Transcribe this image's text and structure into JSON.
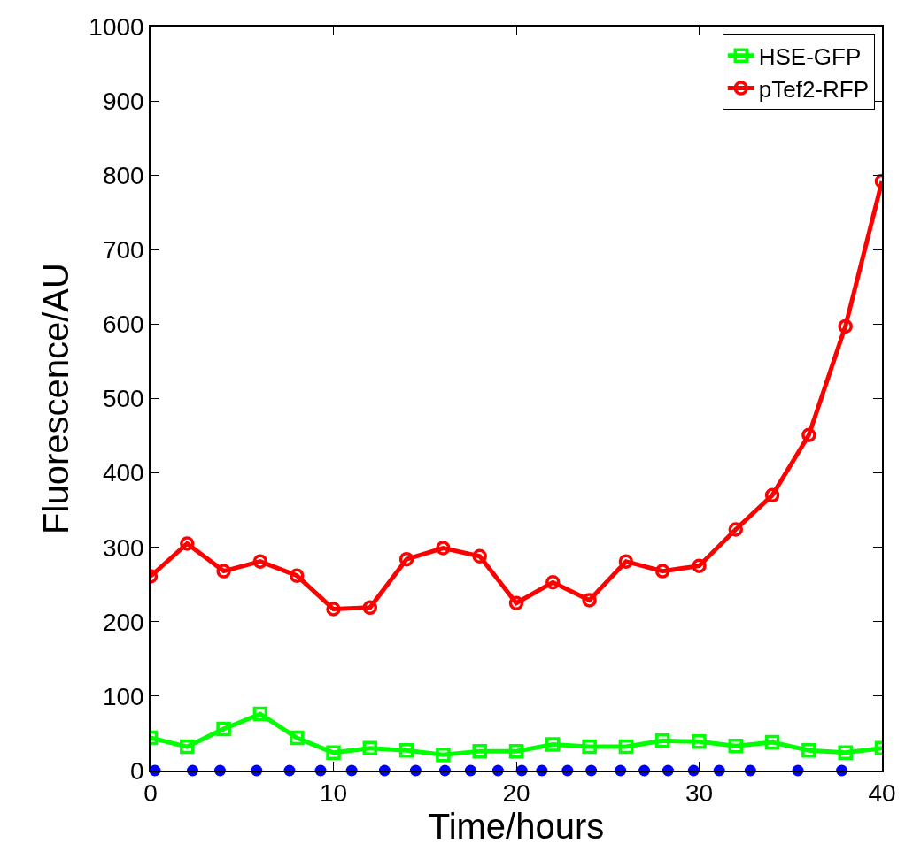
{
  "chart_data": {
    "type": "line",
    "xlabel": "Time/hours",
    "ylabel": "Fluorescence/AU",
    "xlim": [
      0,
      40
    ],
    "ylim": [
      0,
      1000
    ],
    "xticks": [
      0,
      10,
      20,
      30,
      40
    ],
    "yticks": [
      0,
      100,
      200,
      300,
      400,
      500,
      600,
      700,
      800,
      900,
      1000
    ],
    "legend": "top right",
    "series": [
      {
        "name": "HSE-GFP",
        "color": "#00ff00",
        "marker": "square",
        "x": [
          0,
          2,
          4,
          6,
          8,
          10,
          12,
          14,
          16,
          18,
          20,
          22,
          24,
          26,
          28,
          30,
          32,
          34,
          36,
          38,
          40
        ],
        "values": [
          44,
          32,
          56,
          76,
          44,
          24,
          30,
          27,
          21,
          26,
          26,
          35,
          32,
          32,
          40,
          39,
          33,
          38,
          27,
          24,
          30
        ]
      },
      {
        "name": "pTef2-RFP",
        "color": "#ff0000",
        "marker": "circle",
        "x": [
          0,
          2,
          4,
          6,
          8,
          10,
          12,
          14,
          16,
          18,
          20,
          22,
          24,
          26,
          28,
          30,
          32,
          34,
          36,
          38,
          40
        ],
        "values": [
          261,
          305,
          268,
          281,
          262,
          217,
          219,
          284,
          299,
          288,
          225,
          253,
          229,
          281,
          268,
          275,
          324,
          370,
          451,
          597,
          792
        ]
      },
      {
        "type": "scatter",
        "color": "#0000ff",
        "marker": "circle",
        "x": [
          0.24,
          2.3,
          3.8,
          5.8,
          7.6,
          9.3,
          11.0,
          12.8,
          14.5,
          16.1,
          17.5,
          19.0,
          20.3,
          21.4,
          22.8,
          24.1,
          25.7,
          27.0,
          28.3,
          29.7,
          31.1,
          32.8,
          35.4,
          37.8
        ],
        "values": [
          0,
          0,
          0,
          0,
          0,
          0,
          0,
          0,
          0,
          0,
          0,
          0,
          0,
          0,
          0,
          0,
          0,
          0,
          0,
          0,
          0,
          0,
          0,
          0
        ]
      }
    ]
  }
}
